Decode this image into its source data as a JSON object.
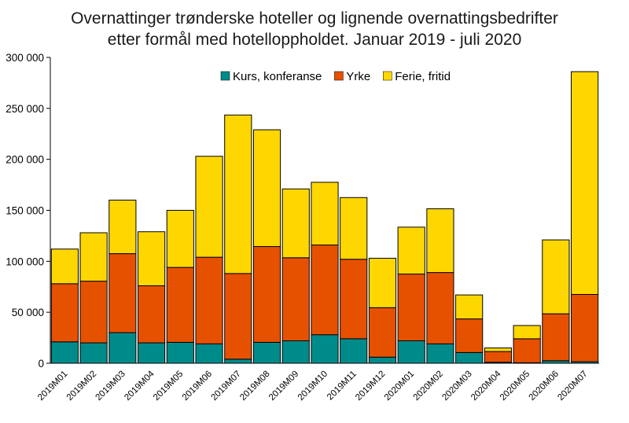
{
  "chart_data": {
    "type": "bar",
    "stacked": true,
    "title": "Overnattinger trønderske hoteller og lignende overnattingsbedrifter",
    "subtitle": "etter formål med hotelloppholdet.  Januar 2019 - juli 2020",
    "xlabel": "",
    "ylabel": "",
    "ylim": [
      0,
      300000
    ],
    "yticks": [
      0,
      50000,
      100000,
      150000,
      200000,
      250000,
      300000
    ],
    "ytick_labels": [
      "0",
      "50 000",
      "100 000",
      "150 000",
      "200 000",
      "250 000",
      "300 000"
    ],
    "grid": false,
    "legend_position": "top",
    "categories": [
      "2019M01",
      "2019M02",
      "2019M03",
      "2019M04",
      "2019M05",
      "2019M06",
      "2019M07",
      "2019M08",
      "2019M09",
      "2019M10",
      "2019M11",
      "2019M12",
      "2020M01",
      "2020M02",
      "2020M03",
      "2020M04",
      "2020M05",
      "2020M06",
      "2020M07"
    ],
    "series": [
      {
        "name": "Kurs, konferanse",
        "color": "#008B8B",
        "values": [
          21000,
          20000,
          30000,
          20000,
          20500,
          19000,
          4000,
          20500,
          22000,
          28000,
          24000,
          6000,
          22000,
          19000,
          10500,
          1000,
          500,
          2500,
          1500
        ]
      },
      {
        "name": "Yrke",
        "color": "#E65100",
        "values": [
          57000,
          60500,
          77500,
          56000,
          73500,
          85000,
          84000,
          94000,
          81500,
          88000,
          78000,
          48500,
          65500,
          70000,
          33000,
          10500,
          23500,
          46000,
          66000
        ]
      },
      {
        "name": "Ferie, fritid",
        "color": "#FFD700",
        "values": [
          34000,
          47500,
          52500,
          53000,
          56000,
          99000,
          155500,
          114500,
          67500,
          61500,
          60500,
          48500,
          46000,
          62500,
          23500,
          3500,
          13000,
          72500,
          218500
        ]
      }
    ]
  }
}
